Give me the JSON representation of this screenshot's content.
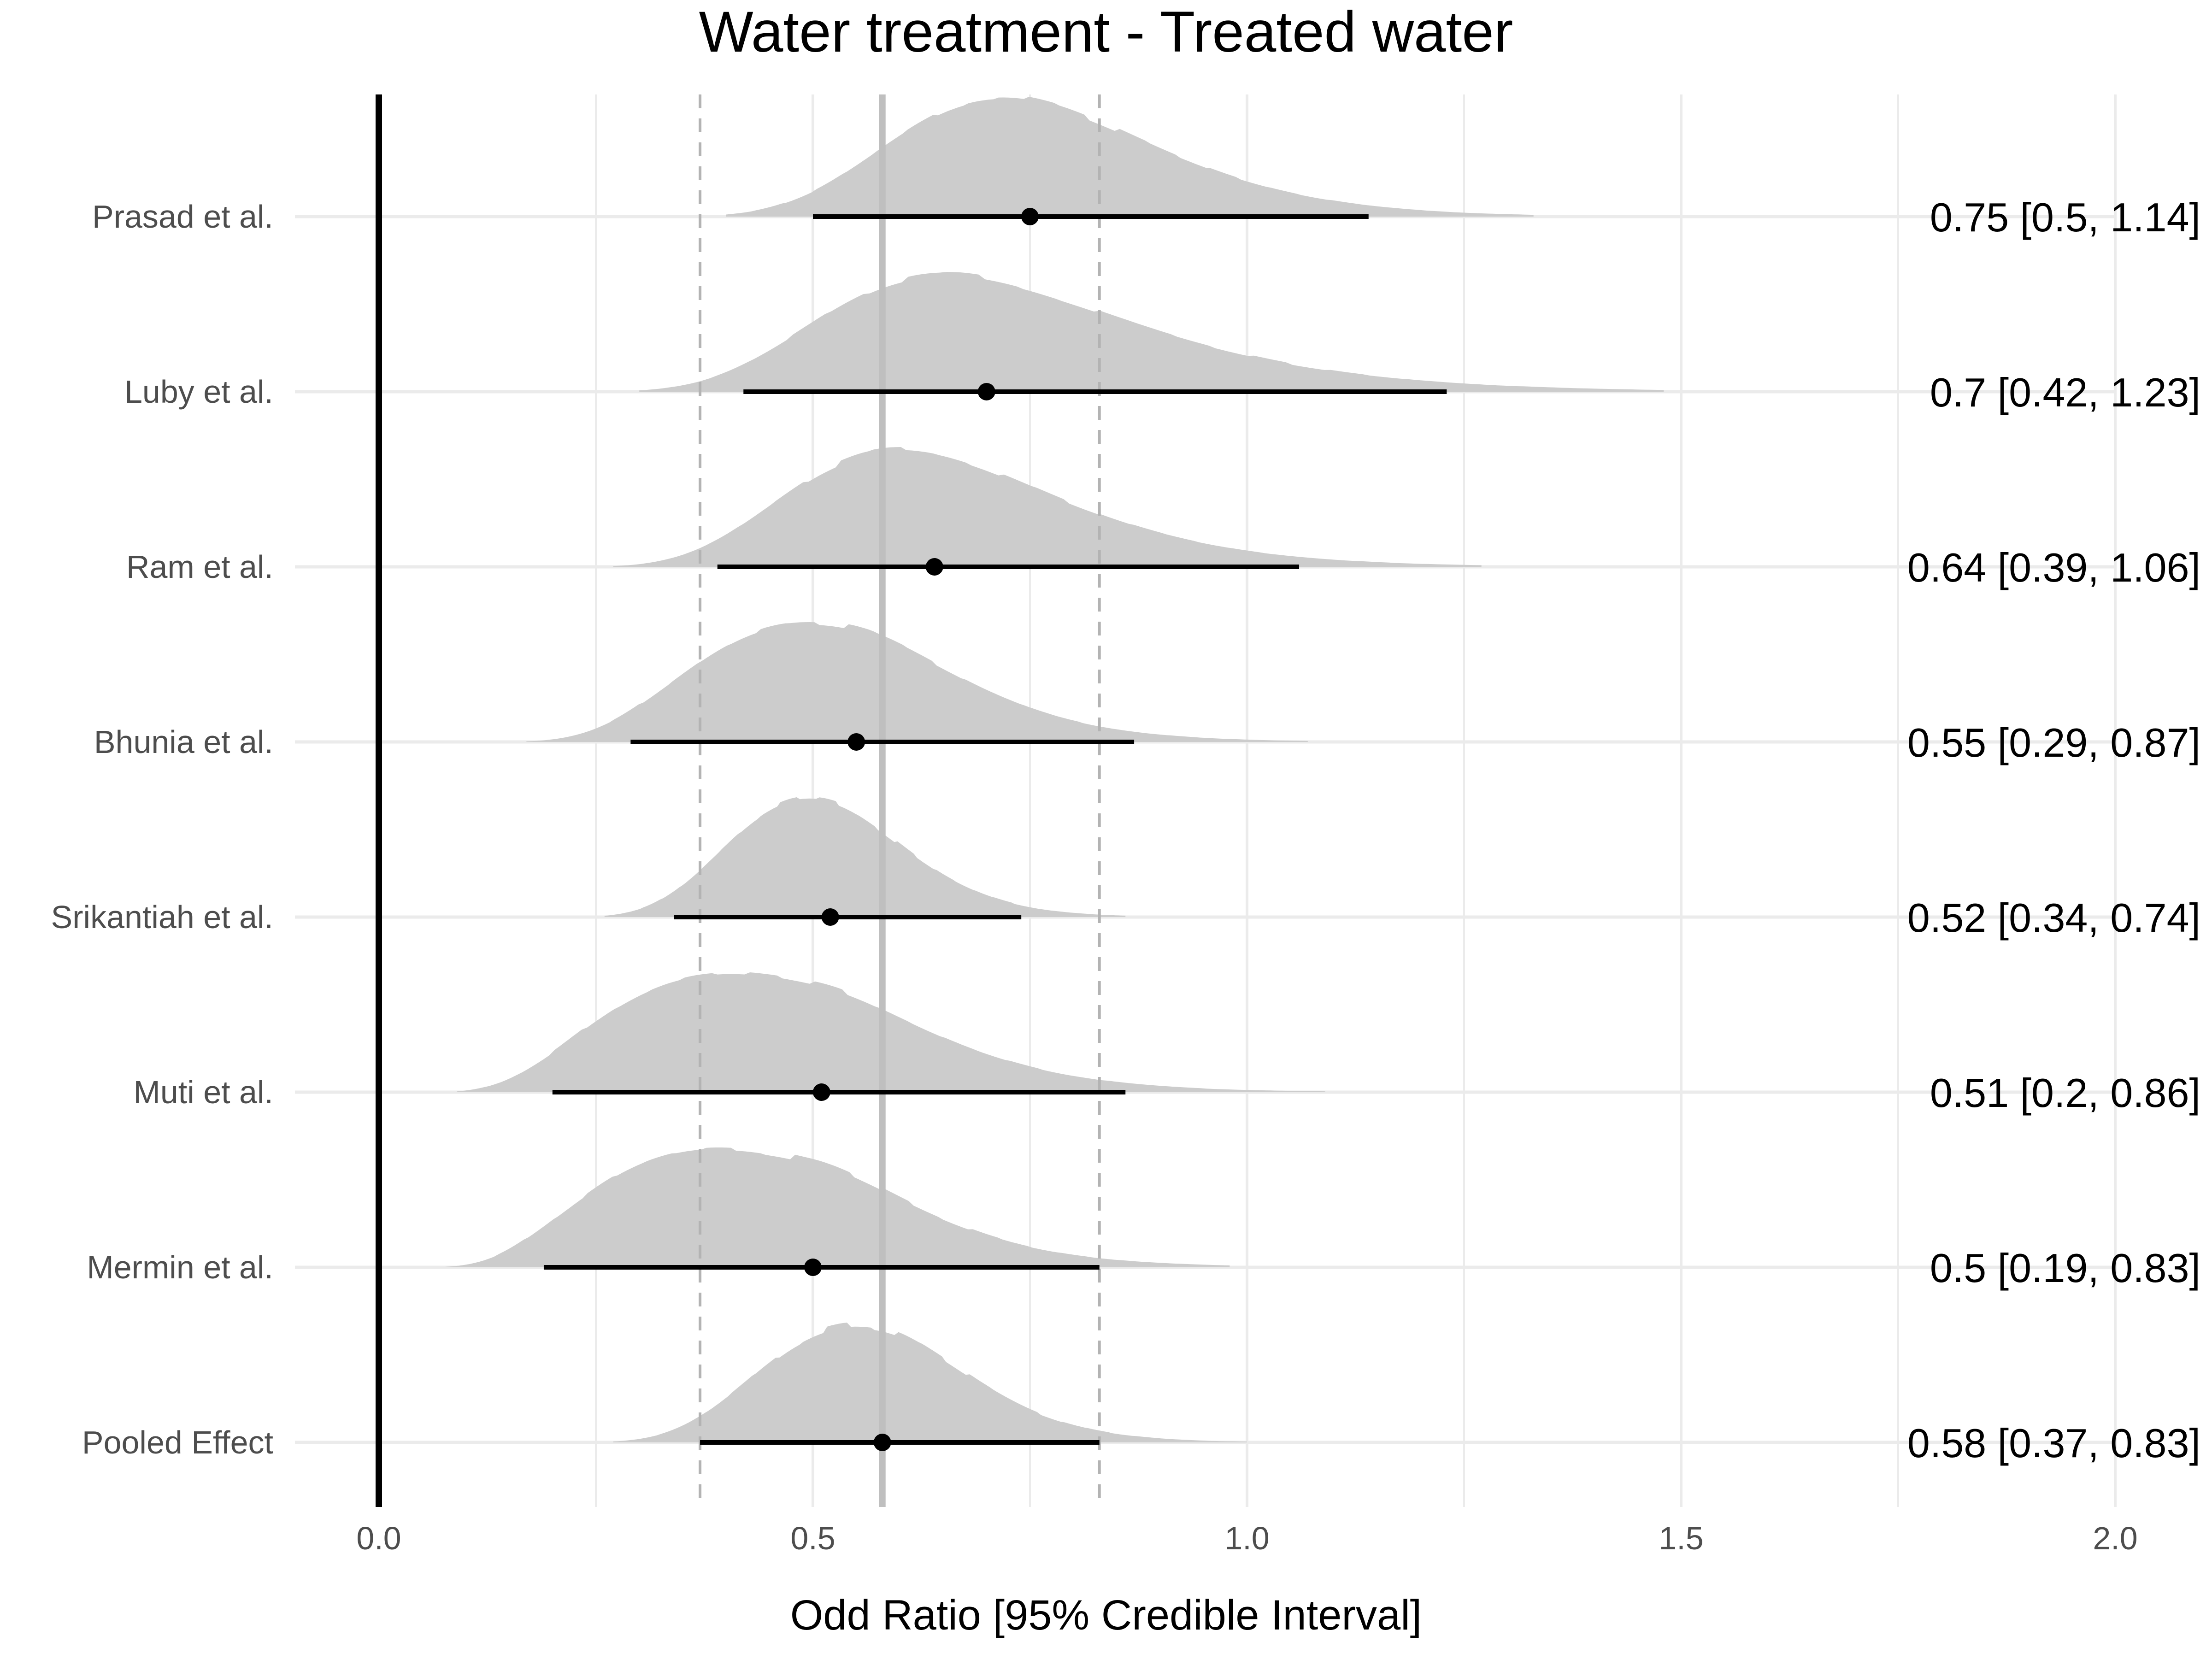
{
  "chart_data": {
    "type": "forest-density",
    "title": "Water treatment - Treated water",
    "xlabel": "Odd Ratio [95% Credible Interval]",
    "ylabel": "",
    "xlim": [
      0,
      2
    ],
    "xticks": [
      "0.0",
      "0.5",
      "1.0",
      "1.5",
      "2.0"
    ],
    "xtick_values": [
      0,
      0.5,
      1.0,
      1.5,
      2.0
    ],
    "reference_line": 0,
    "pooled_estimate_line": 0.58,
    "pooled_ci_lines": [
      0.37,
      0.83
    ],
    "grid": true,
    "colors": {
      "density": "#cccccc",
      "interval": "#000000",
      "reference": "#000000",
      "pooled_line": "#bfbfbf",
      "dashed": "#b3b3b3",
      "grid": "#ebebeb"
    },
    "studies": [
      {
        "label": "Prasad et al.",
        "estimate": 0.75,
        "lower": 0.5,
        "upper": 1.14,
        "summary": "0.75 [0.5, 1.14]",
        "density_range": [
          0.4,
          1.33
        ]
      },
      {
        "label": "Luby et al.",
        "estimate": 0.7,
        "lower": 0.42,
        "upper": 1.23,
        "summary": "0.7 [0.42, 1.23]",
        "density_range": [
          0.3,
          1.48
        ]
      },
      {
        "label": "Ram et al.",
        "estimate": 0.64,
        "lower": 0.39,
        "upper": 1.06,
        "summary": "0.64 [0.39, 1.06]",
        "density_range": [
          0.27,
          1.27
        ]
      },
      {
        "label": "Bhunia et al.",
        "estimate": 0.55,
        "lower": 0.29,
        "upper": 0.87,
        "summary": "0.55 [0.29, 0.87]",
        "density_range": [
          0.17,
          1.07
        ]
      },
      {
        "label": "Srikantiah et al.",
        "estimate": 0.52,
        "lower": 0.34,
        "upper": 0.74,
        "summary": "0.52 [0.34, 0.74]",
        "density_range": [
          0.26,
          0.86
        ]
      },
      {
        "label": "Muti et al.",
        "estimate": 0.51,
        "lower": 0.2,
        "upper": 0.86,
        "summary": "0.51 [0.2, 0.86]",
        "density_range": [
          0.09,
          1.09
        ]
      },
      {
        "label": "Mermin et al.",
        "estimate": 0.5,
        "lower": 0.19,
        "upper": 0.83,
        "summary": "0.5 [0.19, 0.83]",
        "density_range": [
          0.07,
          0.98
        ]
      },
      {
        "label": "Pooled Effect",
        "estimate": 0.58,
        "lower": 0.37,
        "upper": 0.83,
        "summary": "0.58 [0.37, 0.83]",
        "density_range": [
          0.27,
          1.0
        ]
      }
    ]
  }
}
